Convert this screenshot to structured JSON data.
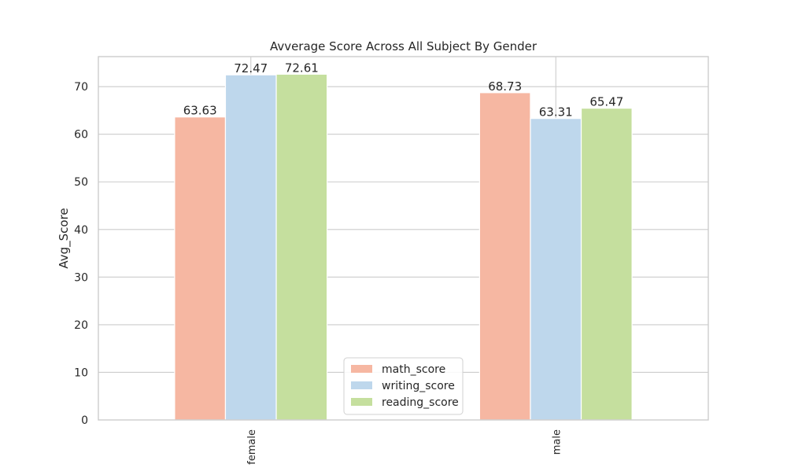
{
  "chart_data": {
    "type": "bar",
    "title": "Avverage Score Across All Subject By Gender",
    "xlabel": "",
    "ylabel": "Avg_Score",
    "categories": [
      "female",
      "male"
    ],
    "series": [
      {
        "name": "math_score",
        "color": "#f6b7a2",
        "values": [
          63.63,
          68.73
        ]
      },
      {
        "name": "writing_score",
        "color": "#bed7ec",
        "values": [
          72.47,
          63.31
        ]
      },
      {
        "name": "reading_score",
        "color": "#c5df9e",
        "values": [
          72.61,
          65.47
        ]
      }
    ],
    "value_labels": [
      [
        "63.63",
        "68.73"
      ],
      [
        "72.47",
        "63.31"
      ],
      [
        "72.61",
        "65.47"
      ]
    ],
    "ylim": [
      0,
      76.3
    ],
    "yticks": [
      0,
      10,
      20,
      30,
      40,
      50,
      60,
      70
    ],
    "grid": true,
    "legend_position": "lower center"
  }
}
